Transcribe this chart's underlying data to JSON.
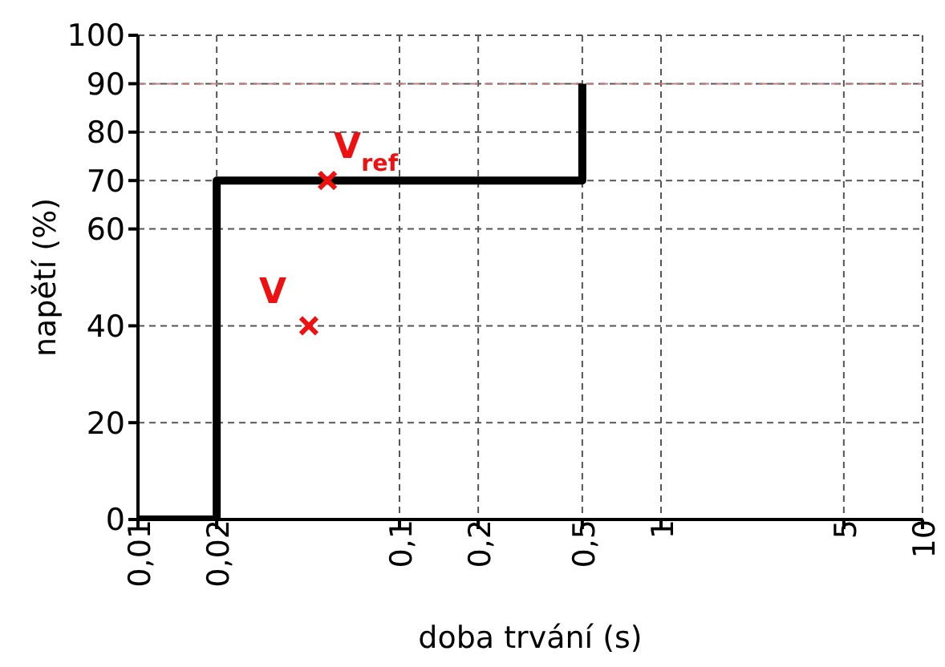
{
  "chart_data": {
    "type": "line",
    "xlabel": "doba trvání (s)",
    "ylabel": "napětí (%)",
    "log": "x",
    "xlim": [
      0.01,
      10
    ],
    "xticks": [
      {
        "value": 0.01,
        "label": "0,01"
      },
      {
        "value": 0.02,
        "label": "0,02"
      },
      {
        "value": 0.1,
        "label": "0,1"
      },
      {
        "value": 0.2,
        "label": "0,2"
      },
      {
        "value": 0.5,
        "label": "0,5"
      },
      1,
      5,
      10
    ],
    "ylim": [
      0,
      100
    ],
    "yticks": [
      0,
      20,
      40,
      60,
      70,
      80,
      90,
      100
    ],
    "grid": true,
    "ref_lines": [
      {
        "axis": "y",
        "value": 90,
        "color": "#c08080",
        "line_style": "dashed"
      }
    ],
    "series": [
      {
        "color": "#000000",
        "x": [
          0.01,
          0.02,
          0.02,
          0.5,
          0.5
        ],
        "values": [
          0,
          0,
          70,
          70,
          90
        ],
        "marker": "none"
      },
      {
        "type": "scatter",
        "name": "V$_{ref}$",
        "color": "#ee1111",
        "x": [
          0.053
        ],
        "values": [
          70
        ],
        "marker": "cross"
      },
      {
        "type": "scatter",
        "name": "V",
        "color": "#ee1111",
        "x": [
          0.045
        ],
        "values": [
          40
        ],
        "marker": "cross"
      }
    ]
  }
}
